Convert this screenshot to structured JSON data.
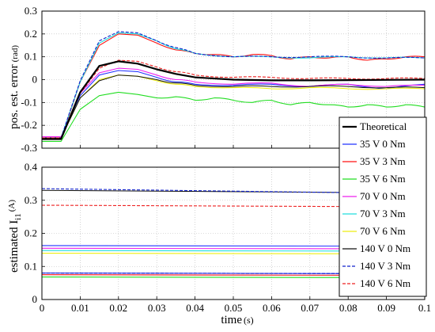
{
  "figure": {
    "xlabel": "time",
    "xunit": "(s)",
    "xticks": [
      "0",
      "0.01",
      "0.02",
      "0.03",
      "0.04",
      "0.05",
      "0.06",
      "0.07",
      "0.08",
      "0.09",
      "0.1"
    ]
  },
  "chart_data": [
    {
      "type": "line",
      "ylabel": "pos. est. error",
      "yunit": "(rad)",
      "xlim": [
        0,
        0.1
      ],
      "ylim": [
        -0.3,
        0.3
      ],
      "yticks": [
        "-0.3",
        "-0.2",
        "-0.1",
        "0",
        "0.1",
        "0.2",
        "0.3"
      ],
      "grid": true,
      "series": [
        {
          "name": "Theoretical",
          "color": "#000000",
          "width": 2.2,
          "dash": "",
          "x": [
            0,
            0.005,
            0.01,
            0.015,
            0.02,
            0.025,
            0.03,
            0.035,
            0.04,
            0.05,
            0.06,
            0.07,
            0.08,
            0.09,
            0.1
          ],
          "y": [
            -0.26,
            -0.26,
            -0.055,
            0.06,
            0.08,
            0.07,
            0.045,
            0.025,
            0.01,
            0.0,
            -0.003,
            -0.003,
            -0.002,
            -0.001,
            0.0
          ]
        },
        {
          "name": "35 V 0 Nm",
          "color": "#2233ff",
          "width": 1.1,
          "dash": "",
          "x": [
            0,
            0.005,
            0.01,
            0.015,
            0.02,
            0.025,
            0.03,
            0.035,
            0.04,
            0.05,
            0.06,
            0.07,
            0.08,
            0.09,
            0.1
          ],
          "y": [
            -0.25,
            -0.25,
            -0.07,
            0.02,
            0.04,
            0.035,
            0.01,
            -0.01,
            -0.02,
            -0.025,
            -0.02,
            -0.03,
            -0.02,
            -0.04,
            -0.02
          ]
        },
        {
          "name": "35 V 3 Nm",
          "color": "#ff1111",
          "width": 1.1,
          "dash": "",
          "x": [
            0,
            0.005,
            0.01,
            0.015,
            0.02,
            0.025,
            0.03,
            0.035,
            0.04,
            0.045,
            0.05,
            0.055,
            0.06,
            0.065,
            0.07,
            0.075,
            0.08,
            0.085,
            0.09,
            0.095,
            0.1
          ],
          "y": [
            -0.26,
            -0.26,
            -0.01,
            0.15,
            0.2,
            0.195,
            0.16,
            0.13,
            0.115,
            0.11,
            0.1,
            0.11,
            0.105,
            0.09,
            0.1,
            0.095,
            0.1,
            0.085,
            0.09,
            0.1,
            0.1
          ]
        },
        {
          "name": "35 V 6 Nm",
          "color": "#22dd22",
          "width": 1.1,
          "dash": "",
          "x": [
            0,
            0.005,
            0.01,
            0.015,
            0.02,
            0.025,
            0.03,
            0.035,
            0.04,
            0.045,
            0.05,
            0.055,
            0.06,
            0.065,
            0.07,
            0.075,
            0.08,
            0.085,
            0.09,
            0.095,
            0.1
          ],
          "y": [
            -0.27,
            -0.27,
            -0.13,
            -0.07,
            -0.055,
            -0.065,
            -0.08,
            -0.075,
            -0.09,
            -0.08,
            -0.09,
            -0.1,
            -0.09,
            -0.11,
            -0.1,
            -0.11,
            -0.12,
            -0.11,
            -0.12,
            -0.11,
            -0.12
          ]
        },
        {
          "name": "70 V 0 Nm",
          "color": "#ee22ee",
          "width": 1.1,
          "dash": "",
          "x": [
            0,
            0.005,
            0.01,
            0.015,
            0.02,
            0.025,
            0.03,
            0.035,
            0.04,
            0.05,
            0.06,
            0.07,
            0.08,
            0.09,
            0.1
          ],
          "y": [
            -0.25,
            -0.25,
            -0.06,
            0.03,
            0.05,
            0.045,
            0.02,
            0.0,
            -0.01,
            -0.02,
            -0.015,
            -0.03,
            -0.02,
            -0.03,
            -0.025
          ]
        },
        {
          "name": "70 V 3 Nm",
          "color": "#22dddd",
          "width": 1.1,
          "dash": "",
          "x": [
            0,
            0.005,
            0.01,
            0.015,
            0.02,
            0.025,
            0.03,
            0.035,
            0.04,
            0.05,
            0.06,
            0.07,
            0.08,
            0.09,
            0.1
          ],
          "y": [
            -0.255,
            -0.255,
            -0.01,
            0.16,
            0.205,
            0.2,
            0.17,
            0.135,
            0.115,
            0.1,
            0.1,
            0.095,
            0.1,
            0.095,
            0.095
          ]
        },
        {
          "name": "70 V 6 Nm",
          "color": "#eeee11",
          "width": 1.1,
          "dash": "",
          "x": [
            0,
            0.005,
            0.01,
            0.015,
            0.02,
            0.025,
            0.03,
            0.035,
            0.04,
            0.05,
            0.06,
            0.07,
            0.08,
            0.09,
            0.1
          ],
          "y": [
            -0.255,
            -0.255,
            -0.08,
            0.0,
            0.02,
            0.015,
            -0.005,
            -0.02,
            -0.03,
            -0.035,
            -0.04,
            -0.035,
            -0.04,
            -0.04,
            -0.04
          ]
        },
        {
          "name": "140 V 0 Nm",
          "color": "#111111",
          "width": 1.0,
          "dash": "",
          "x": [
            0,
            0.005,
            0.01,
            0.015,
            0.02,
            0.025,
            0.03,
            0.035,
            0.04,
            0.05,
            0.06,
            0.07,
            0.08,
            0.09,
            0.1
          ],
          "y": [
            -0.255,
            -0.255,
            -0.08,
            -0.005,
            0.02,
            0.015,
            0.0,
            -0.015,
            -0.025,
            -0.03,
            -0.03,
            -0.03,
            -0.03,
            -0.035,
            -0.035
          ]
        },
        {
          "name": "140 V 3 Nm",
          "color": "#1122cc",
          "width": 1.1,
          "dash": "4,2",
          "x": [
            0,
            0.005,
            0.01,
            0.015,
            0.02,
            0.025,
            0.03,
            0.035,
            0.04,
            0.05,
            0.06,
            0.07,
            0.08,
            0.09,
            0.1
          ],
          "y": [
            -0.255,
            -0.255,
            -0.005,
            0.17,
            0.21,
            0.205,
            0.17,
            0.14,
            0.115,
            0.1,
            0.1,
            0.1,
            0.1,
            0.095,
            0.095
          ]
        },
        {
          "name": "140 V 6 Nm",
          "color": "#ee2222",
          "width": 1.1,
          "dash": "4,2",
          "x": [
            0,
            0.005,
            0.01,
            0.015,
            0.02,
            0.025,
            0.03,
            0.035,
            0.04,
            0.05,
            0.06,
            0.07,
            0.08,
            0.09,
            0.1
          ],
          "y": [
            -0.255,
            -0.255,
            -0.06,
            0.05,
            0.085,
            0.08,
            0.055,
            0.035,
            0.02,
            0.01,
            0.01,
            0.005,
            0.005,
            0.005,
            0.005
          ]
        }
      ]
    },
    {
      "type": "line",
      "ylabel": "estimated I",
      "ysub": "i1",
      "yunit": "(A)",
      "xlim": [
        0,
        0.1
      ],
      "ylim": [
        0,
        0.4
      ],
      "yticks": [
        "0",
        "0.1",
        "0.2",
        "0.3",
        "0.4"
      ],
      "grid": true,
      "legend": {
        "placement": "right",
        "entries": [
          "Theoretical",
          "35 V 0 Nm",
          "35 V 3 Nm",
          "35 V 6 Nm",
          "70 V 0 Nm",
          "70 V 3 Nm",
          "70 V 6 Nm",
          "140 V 0 Nm",
          "140 V 3 Nm",
          "140 V 6 Nm"
        ]
      },
      "series": [
        {
          "name": "35 V 0 Nm",
          "color": "#2233ff",
          "width": 1.1,
          "dash": "",
          "x": [
            0,
            0.1
          ],
          "y": [
            0.08,
            0.078
          ]
        },
        {
          "name": "35 V 3 Nm",
          "color": "#ff1111",
          "width": 1.1,
          "dash": "",
          "x": [
            0,
            0.1
          ],
          "y": [
            0.075,
            0.073
          ]
        },
        {
          "name": "35 V 6 Nm",
          "color": "#22dd22",
          "width": 1.1,
          "dash": "",
          "x": [
            0,
            0.1
          ],
          "y": [
            0.068,
            0.066
          ]
        },
        {
          "name": "70 V 0 Nm",
          "color": "#ee22ee",
          "width": 1.1,
          "dash": "",
          "x": [
            0,
            0.1
          ],
          "y": [
            0.155,
            0.153
          ]
        },
        {
          "name": "70 V 3 Nm",
          "color": "#22dddd",
          "width": 1.1,
          "dash": "",
          "x": [
            0,
            0.1
          ],
          "y": [
            0.148,
            0.146
          ]
        },
        {
          "name": "70 V 6 Nm",
          "color": "#eeee11",
          "width": 1.1,
          "dash": "",
          "x": [
            0,
            0.1
          ],
          "y": [
            0.14,
            0.138
          ]
        },
        {
          "name": "140 V 0 Nm",
          "color": "#111111",
          "width": 1.0,
          "dash": "",
          "x": [
            0,
            0.1
          ],
          "y": [
            0.33,
            0.322
          ]
        },
        {
          "name": "140 V 3 Nm",
          "color": "#1122cc",
          "width": 1.1,
          "dash": "4,2",
          "x": [
            0,
            0.1
          ],
          "y": [
            0.335,
            0.32
          ]
        },
        {
          "name": "140 V 6 Nm",
          "color": "#ee2222",
          "width": 1.1,
          "dash": "4,2",
          "x": [
            0,
            0.1
          ],
          "y": [
            0.285,
            0.28
          ]
        },
        {
          "name": "35 V 0 Nm (2)",
          "color": "#2233ff",
          "width": 1.1,
          "dash": "",
          "x": [
            0,
            0.1
          ],
          "y": [
            0.163,
            0.161
          ]
        },
        {
          "name": "140 V 3 Nm (2)",
          "color": "#1122cc",
          "width": 1.1,
          "dash": "4,2",
          "x": [
            0,
            0.1
          ],
          "y": [
            0.08,
            0.078
          ]
        }
      ]
    }
  ]
}
